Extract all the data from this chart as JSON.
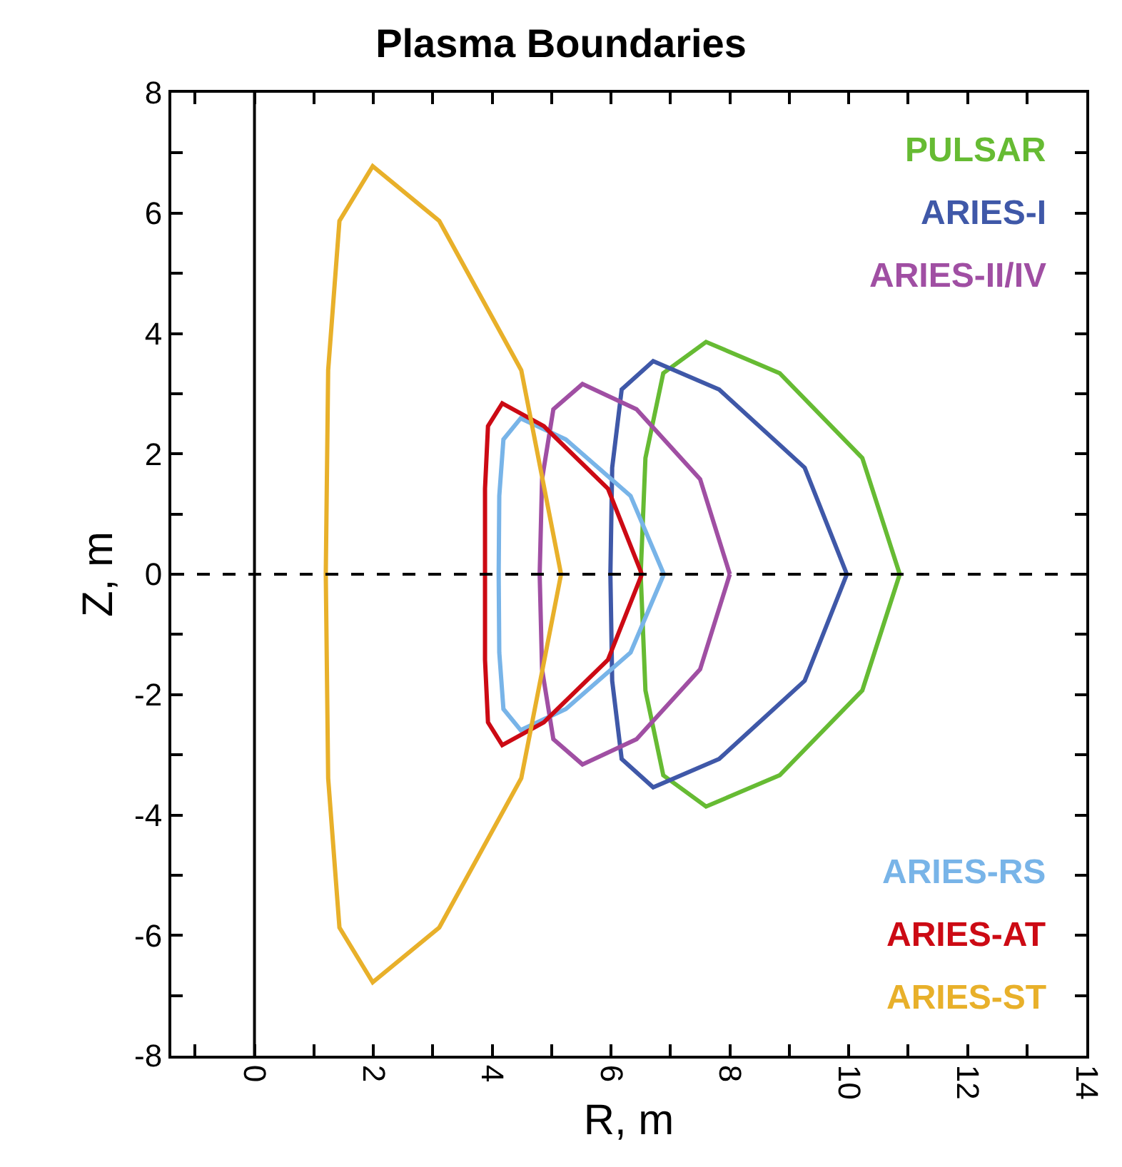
{
  "chart_data": {
    "type": "line",
    "title": "Plasma Boundaries",
    "xlabel": "R, m",
    "ylabel": "Z, m",
    "xlim": [
      -1.4,
      14
    ],
    "ylim": [
      -8,
      8
    ],
    "xticks": [
      {
        "value": -1,
        "label": null
      },
      0,
      {
        "value": 1,
        "label": null
      },
      2,
      {
        "value": 3,
        "label": null
      },
      4,
      {
        "value": 5,
        "label": null
      },
      6,
      {
        "value": 7,
        "label": null
      },
      8,
      {
        "value": 9,
        "label": null
      },
      10,
      {
        "value": 11,
        "label": null
      },
      12,
      {
        "value": 13,
        "label": null
      },
      14
    ],
    "yticks": [
      -8,
      {
        "value": -7,
        "label": null
      },
      -6,
      {
        "value": -5,
        "label": null
      },
      -4,
      {
        "value": -3,
        "label": null
      },
      -2,
      {
        "value": -1,
        "label": null
      },
      0,
      {
        "value": 1,
        "label": null
      },
      2,
      {
        "value": 3,
        "label": null
      },
      4,
      {
        "value": 5,
        "label": null
      },
      6,
      {
        "value": 7,
        "label": null
      },
      8
    ],
    "legend": "right",
    "marker": "none",
    "line_style": "solid",
    "ref_lines": [
      {
        "axis": "x",
        "value": 0,
        "color": "#000000",
        "line_style": "solid"
      },
      {
        "axis": "y",
        "value": 0,
        "color": "#000000",
        "line_style": "dashed"
      }
    ],
    "series": [
      {
        "name": "PULSAR",
        "color": "#66bb33",
        "x": [
          6.5,
          6.58,
          6.88,
          7.6,
          8.84,
          10.23,
          10.86,
          null,
          6.5,
          6.58,
          6.88,
          7.6,
          8.84,
          10.23,
          10.86
        ],
        "values": [
          0,
          1.93,
          3.34,
          3.86,
          3.34,
          1.93,
          0,
          null,
          0,
          -1.93,
          -3.34,
          -3.86,
          -3.34,
          -1.93,
          0
        ]
      },
      {
        "name": "ARIES-I",
        "color": "#3f58a8",
        "x": [
          5.99,
          6.02,
          6.18,
          6.71,
          7.82,
          9.26,
          9.97,
          null,
          5.99,
          6.02,
          6.18,
          6.71,
          7.82,
          9.26,
          9.97
        ],
        "values": [
          0,
          1.77,
          3.07,
          3.54,
          3.07,
          1.77,
          0,
          null,
          0,
          -1.77,
          -3.07,
          -3.54,
          -3.07,
          -1.77,
          0
        ]
      },
      {
        "name": "ARIES-II/IV",
        "color": "#a04fa3",
        "x": [
          4.8,
          4.84,
          5.03,
          5.52,
          6.43,
          7.5,
          8.0,
          null,
          4.8,
          4.84,
          5.03,
          5.52,
          6.43,
          7.5,
          8.0
        ],
        "values": [
          0,
          1.58,
          2.74,
          3.16,
          2.74,
          1.58,
          0,
          null,
          0,
          -1.58,
          -2.74,
          -3.16,
          -2.74,
          -1.58,
          0
        ]
      },
      {
        "name": "ARIES-RS",
        "color": "#78b4e8",
        "x": [
          4.11,
          4.12,
          4.19,
          4.48,
          5.24,
          6.33,
          6.89,
          null,
          4.11,
          4.12,
          4.19,
          4.48,
          5.24,
          6.33,
          6.89
        ],
        "values": [
          0,
          1.3,
          2.24,
          2.59,
          2.24,
          1.3,
          0,
          null,
          0,
          -1.3,
          -2.24,
          -2.59,
          -2.24,
          -1.3,
          0
        ]
      },
      {
        "name": "ARIES-AT",
        "color": "#cc0a14",
        "x": [
          3.88,
          3.88,
          3.93,
          4.17,
          4.87,
          5.95,
          6.52,
          null,
          3.88,
          3.88,
          3.93,
          4.17,
          4.87,
          5.95,
          6.52
        ],
        "values": [
          0,
          1.42,
          2.46,
          2.84,
          2.46,
          1.42,
          0,
          null,
          0,
          -1.42,
          -2.46,
          -2.84,
          -2.46,
          -1.42,
          0
        ]
      },
      {
        "name": "ARIES-ST",
        "color": "#e8b02a",
        "x": [
          1.2,
          1.24,
          1.43,
          1.99,
          3.11,
          4.49,
          5.16,
          null,
          1.2,
          1.24,
          1.43,
          1.99,
          3.11,
          4.49,
          5.16
        ],
        "values": [
          0,
          3.39,
          5.87,
          6.78,
          5.87,
          3.39,
          0,
          null,
          0,
          -3.39,
          -5.87,
          -6.78,
          -5.87,
          -3.39,
          0
        ]
      }
    ]
  }
}
